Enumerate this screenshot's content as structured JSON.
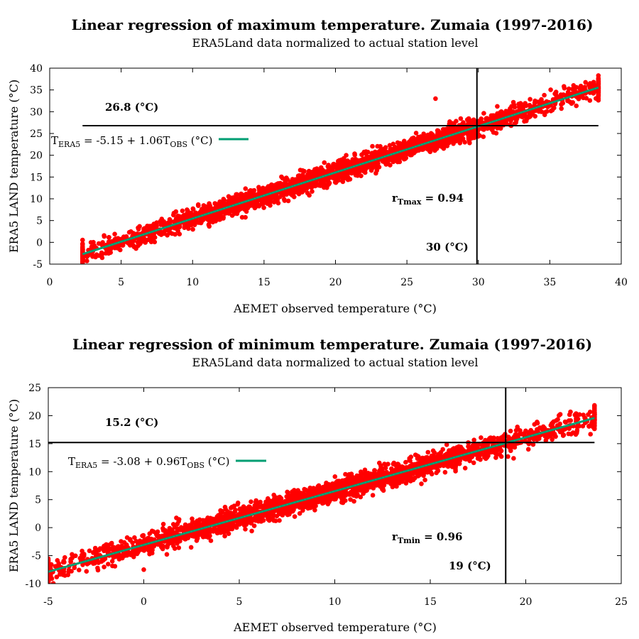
{
  "chart_data": [
    {
      "type": "scatter",
      "title": "Linear regression of maximum temperature. Zumaia (1997-2016)",
      "subtitle": "ERA5Land data normalized to actual station level",
      "xlabel": "AEMET observed temperature (°C)",
      "ylabel": "ERA5 LAND temperature (°C)",
      "xlim": [
        0,
        40
      ],
      "ylim": [
        -5,
        40
      ],
      "xticks": [
        0,
        5,
        10,
        15,
        20,
        25,
        30,
        35,
        40
      ],
      "yticks": [
        -5,
        0,
        5,
        10,
        15,
        20,
        25,
        30,
        35,
        40
      ],
      "grid": false,
      "legend_position": "upper-left",
      "series": [
        {
          "kind": "scatter",
          "color": "#ff0000",
          "x_range": [
            2.3,
            38.4
          ],
          "slope": 1.06,
          "intercept": -5.15,
          "spread": 1.6,
          "count": 2600,
          "sample_points": [
            [
              2.3,
              -2.6
            ],
            [
              5.0,
              0.2
            ],
            [
              10.0,
              5.5
            ],
            [
              15.0,
              10.8
            ],
            [
              20.0,
              16.0
            ],
            [
              25.0,
              21.4
            ],
            [
              27.0,
              33.0
            ],
            [
              30.0,
              26.6
            ],
            [
              35.0,
              32.0
            ],
            [
              38.4,
              33.8
            ]
          ]
        },
        {
          "kind": "line",
          "color": "#009e73",
          "x": [
            2.3,
            38.4
          ],
          "y": [
            -2.71,
            35.55
          ]
        }
      ],
      "threshold_lines": {
        "x": 29.9,
        "y": 26.8,
        "color": "#000000"
      },
      "annotations": {
        "y_threshold": "26.8 (°C)",
        "x_threshold": "30 (°C)",
        "correlation_main": "r",
        "correlation_sub": "Tmax",
        "correlation_value": " = 0.94",
        "equation": {
          "t": "T",
          "t_sub": "ERA5",
          "middle": " = -5.15 + 1.06T",
          "obs_sub": "OBS",
          "unit": " (°C)"
        }
      }
    },
    {
      "type": "scatter",
      "title": "Linear regression of minimum temperature. Zumaia (1997-2016)",
      "subtitle": "ERA5Land data normalized to actual station level",
      "xlabel": "AEMET observed temperature (°C)",
      "ylabel": "ERA5 LAND temperature (°C)",
      "xlim": [
        -5,
        25
      ],
      "ylim": [
        -10,
        25
      ],
      "xticks": [
        -5,
        0,
        5,
        10,
        15,
        20,
        25
      ],
      "yticks": [
        -10,
        -5,
        0,
        5,
        10,
        15,
        20,
        25
      ],
      "grid": false,
      "legend_position": "upper-left",
      "series": [
        {
          "kind": "scatter",
          "color": "#ff0000",
          "x_range": [
            -5.0,
            23.6
          ],
          "slope": 0.96,
          "intercept": -3.08,
          "spread": 1.4,
          "count": 2600,
          "sample_points": [
            [
              -5.0,
              -5.8
            ],
            [
              -3.0,
              -7.8
            ],
            [
              0.0,
              -7.5
            ],
            [
              5.0,
              1.7
            ],
            [
              10.0,
              6.5
            ],
            [
              15.0,
              11.3
            ],
            [
              19.0,
              15.2
            ],
            [
              20.0,
              16.1
            ],
            [
              23.6,
              20.5
            ]
          ]
        },
        {
          "kind": "line",
          "color": "#009e73",
          "x": [
            -5.0,
            23.6
          ],
          "y": [
            -7.88,
            19.58
          ]
        }
      ],
      "threshold_lines": {
        "x": 18.95,
        "y": 15.2,
        "color": "#000000"
      },
      "annotations": {
        "y_threshold": "15.2 (°C)",
        "x_threshold": "19 (°C)",
        "correlation_main": "r",
        "correlation_sub": "Tmin",
        "correlation_value": " = 0.96",
        "equation": {
          "t": "T",
          "t_sub": "ERA5",
          "middle": " = -3.08 + 0.96T",
          "obs_sub": "OBS",
          "unit": " (°C)"
        }
      }
    }
  ]
}
